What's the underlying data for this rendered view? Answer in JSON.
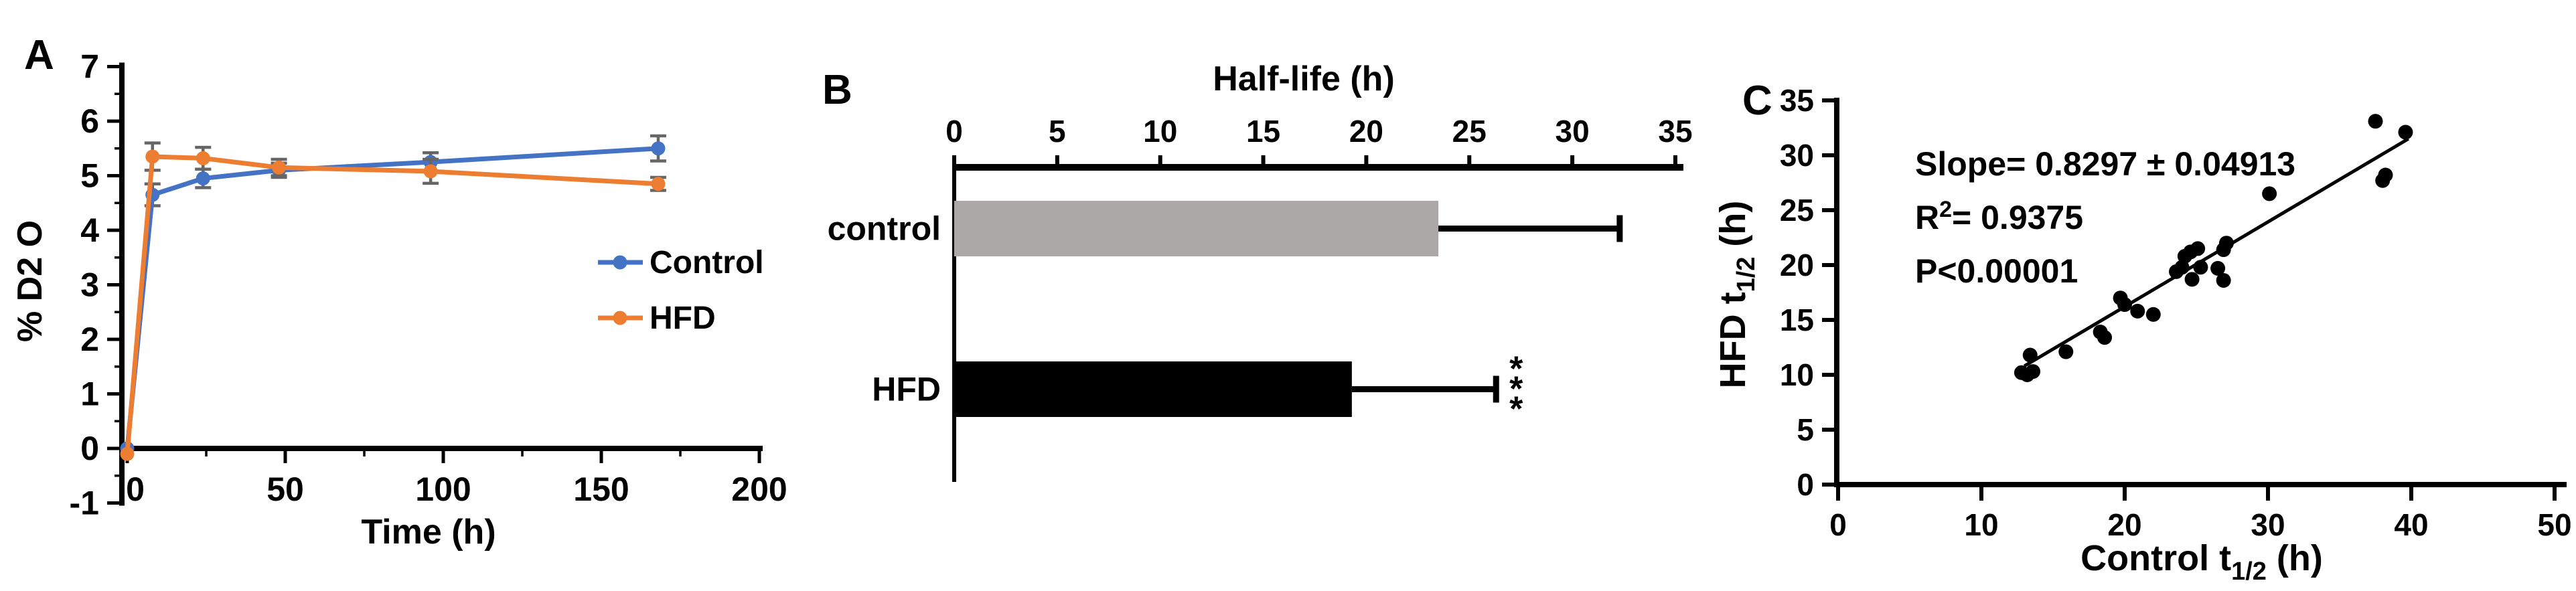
{
  "colors": {
    "control_blue": "#4472C4",
    "hfd_orange": "#ED7D31",
    "error_gray": "#666666",
    "bar_gray": "#ACA8A7",
    "bar_black": "#000000",
    "axis_black": "#000000"
  },
  "chart_data": [
    {
      "id": "A",
      "type": "line",
      "panel_label": "A",
      "xlabel": "Time (h)",
      "ylabel": "% D2 O",
      "xlim": [
        0,
        200
      ],
      "ylim": [
        -1,
        7
      ],
      "xticks": [
        0,
        50,
        100,
        150,
        200
      ],
      "yticks": [
        -1,
        0,
        1,
        2,
        3,
        4,
        5,
        6,
        7
      ],
      "x_minor_step": 25,
      "y_minor_step": 0.5,
      "x": [
        0,
        8,
        24,
        48,
        96,
        168
      ],
      "series": [
        {
          "name": "Control",
          "color": "#4472C4",
          "values": [
            0,
            4.65,
            4.95,
            5.1,
            5.25,
            5.5
          ],
          "errors": [
            0,
            0.2,
            0.17,
            0.13,
            0.17,
            0.23
          ]
        },
        {
          "name": "HFD",
          "color": "#ED7D31",
          "values": [
            -0.1,
            5.35,
            5.32,
            5.15,
            5.08,
            4.85
          ],
          "errors": [
            0,
            0.25,
            0.2,
            0.15,
            0.22,
            0.12
          ]
        }
      ],
      "error_color": "#666666",
      "legend": {
        "position": "right-middle",
        "entries": [
          "Control",
          "HFD"
        ]
      }
    },
    {
      "id": "B",
      "type": "bar",
      "panel_label": "B",
      "orientation": "horizontal",
      "title": "Half-life (h)",
      "categories": [
        "control",
        "HFD"
      ],
      "values": [
        23.5,
        19.3
      ],
      "errors": [
        8.8,
        7.0
      ],
      "bar_colors": [
        "#ACA8A7",
        "#000000"
      ],
      "xlim": [
        0,
        35
      ],
      "xticks": [
        0,
        5,
        10,
        15,
        20,
        25,
        30,
        35
      ],
      "significance": {
        "category": "HFD",
        "label": "***"
      }
    },
    {
      "id": "C",
      "type": "scatter",
      "panel_label": "C",
      "xlabel_parts": {
        "pre": "Control t",
        "sub": "1/2",
        "post": " (h)"
      },
      "ylabel_parts": {
        "pre": "HFD t",
        "sub": "1/2",
        "post": " (h)"
      },
      "xlim": [
        0,
        50
      ],
      "ylim": [
        0,
        35
      ],
      "xticks": [
        0,
        10,
        20,
        30,
        40,
        50
      ],
      "yticks": [
        0,
        5,
        10,
        15,
        20,
        25,
        30,
        35
      ],
      "point_color": "#000000",
      "points": [
        [
          12.8,
          10.2
        ],
        [
          13.2,
          10.0
        ],
        [
          13.6,
          10.3
        ],
        [
          13.4,
          11.8
        ],
        [
          15.9,
          12.1
        ],
        [
          18.3,
          13.9
        ],
        [
          18.6,
          13.4
        ],
        [
          19.7,
          17.0
        ],
        [
          20.0,
          16.4
        ],
        [
          20.9,
          15.8
        ],
        [
          22.0,
          15.5
        ],
        [
          23.6,
          19.4
        ],
        [
          24.0,
          19.8
        ],
        [
          24.2,
          20.8
        ],
        [
          24.6,
          21.2
        ],
        [
          24.7,
          18.7
        ],
        [
          25.1,
          21.5
        ],
        [
          25.3,
          19.8
        ],
        [
          26.5,
          19.7
        ],
        [
          26.9,
          18.6
        ],
        [
          26.9,
          21.4
        ],
        [
          27.1,
          22.0
        ],
        [
          30.1,
          26.5
        ],
        [
          37.5,
          33.1
        ],
        [
          38.0,
          27.7
        ],
        [
          38.2,
          28.2
        ],
        [
          39.6,
          32.1
        ]
      ],
      "trendline": {
        "x1": 13,
        "y1": 10.8,
        "x2": 39.8,
        "y2": 31.5
      },
      "annotation": {
        "slope_line": "Slope= 0.8297 ± 0.04913",
        "r2_base": "R",
        "r2_sup": "2",
        "r2_rest": "= 0.9375",
        "p_line": "P<0.00001"
      }
    }
  ]
}
